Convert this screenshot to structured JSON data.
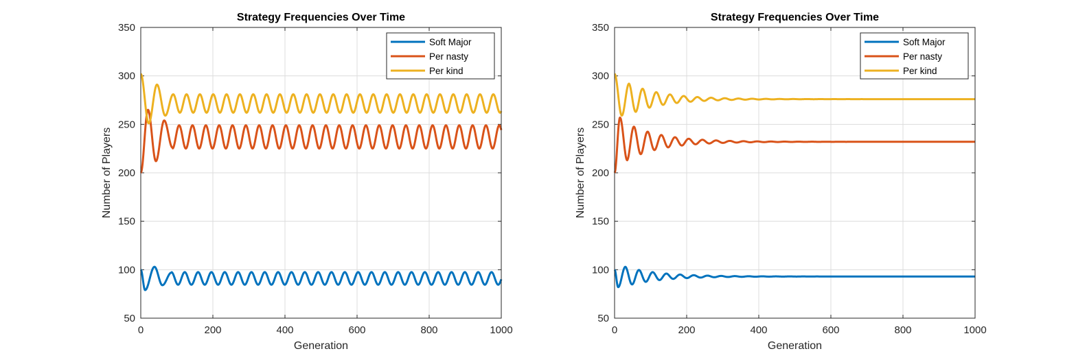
{
  "colors": {
    "soft_major": "#0072BD",
    "per_nasty": "#D95319",
    "per_kind": "#EDB120"
  },
  "chart_data": [
    {
      "type": "line",
      "title": "Strategy Frequencies Over Time",
      "xlabel": "Generation",
      "ylabel": "Number of Players",
      "xlim": [
        0,
        1000
      ],
      "ylim": [
        50,
        350
      ],
      "xticks": [
        "0",
        "200",
        "400",
        "600",
        "800",
        "1000"
      ],
      "yticks": [
        "50",
        "100",
        "150",
        "200",
        "250",
        "300",
        "350"
      ],
      "grid": true,
      "legend_position": "top-right",
      "series": [
        {
          "name": "Soft Major",
          "color_key": "soft_major",
          "start": 100,
          "equilibrium": 91,
          "amplitude": 6.5,
          "period": 37,
          "phase": 1.5708,
          "decay": 0,
          "transient": [
            [
              0,
              100
            ],
            [
              12,
              79
            ],
            [
              38,
              103
            ],
            [
              60,
              84
            ],
            [
              85,
              97
            ]
          ]
        },
        {
          "name": "Per nasty",
          "color_key": "per_nasty",
          "start": 200,
          "equilibrium": 237,
          "amplitude": 12,
          "period": 37,
          "phase": 1.5708,
          "decay": 0,
          "transient": [
            [
              0,
              200
            ],
            [
              20,
              265
            ],
            [
              42,
              212
            ],
            [
              65,
              254
            ],
            [
              88,
              226
            ]
          ]
        },
        {
          "name": "Per kind",
          "color_key": "per_kind",
          "start": 302,
          "equilibrium": 271.5,
          "amplitude": 9.5,
          "period": 37,
          "phase": 1.5708,
          "decay": 0,
          "transient": [
            [
              0,
              302
            ],
            [
              22,
              251
            ],
            [
              45,
              291
            ],
            [
              68,
              259
            ],
            [
              90,
              281
            ]
          ]
        }
      ]
    },
    {
      "type": "line",
      "title": "Strategy Frequencies Over Time",
      "xlabel": "Generation",
      "ylabel": "Number of Players",
      "xlim": [
        0,
        1000
      ],
      "ylim": [
        50,
        350
      ],
      "xticks": [
        "0",
        "200",
        "400",
        "600",
        "800",
        "1000"
      ],
      "yticks": [
        "50",
        "100",
        "150",
        "200",
        "250",
        "300",
        "350"
      ],
      "grid": true,
      "legend_position": "top-right",
      "series": [
        {
          "name": "Soft Major",
          "color_key": "soft_major",
          "start": 100,
          "equilibrium": 93,
          "amplitude": 11,
          "period": 38,
          "phase": 0,
          "decay": 95,
          "transient": [
            [
              0,
              100
            ],
            [
              10,
              82
            ],
            [
              30,
              103
            ]
          ]
        },
        {
          "name": "Per nasty",
          "color_key": "per_nasty",
          "start": 200,
          "equilibrium": 232,
          "amplitude": 24,
          "period": 38,
          "phase": 0,
          "decay": 95,
          "transient": [
            [
              0,
              200
            ],
            [
              15,
              257
            ],
            [
              35,
              213
            ]
          ]
        },
        {
          "name": "Per kind",
          "color_key": "per_kind",
          "start": 302,
          "equilibrium": 276,
          "amplitude": 17,
          "period": 38,
          "phase": 0,
          "decay": 95,
          "transient": [
            [
              0,
              302
            ],
            [
              20,
              259
            ],
            [
              40,
              292
            ]
          ]
        }
      ]
    }
  ]
}
